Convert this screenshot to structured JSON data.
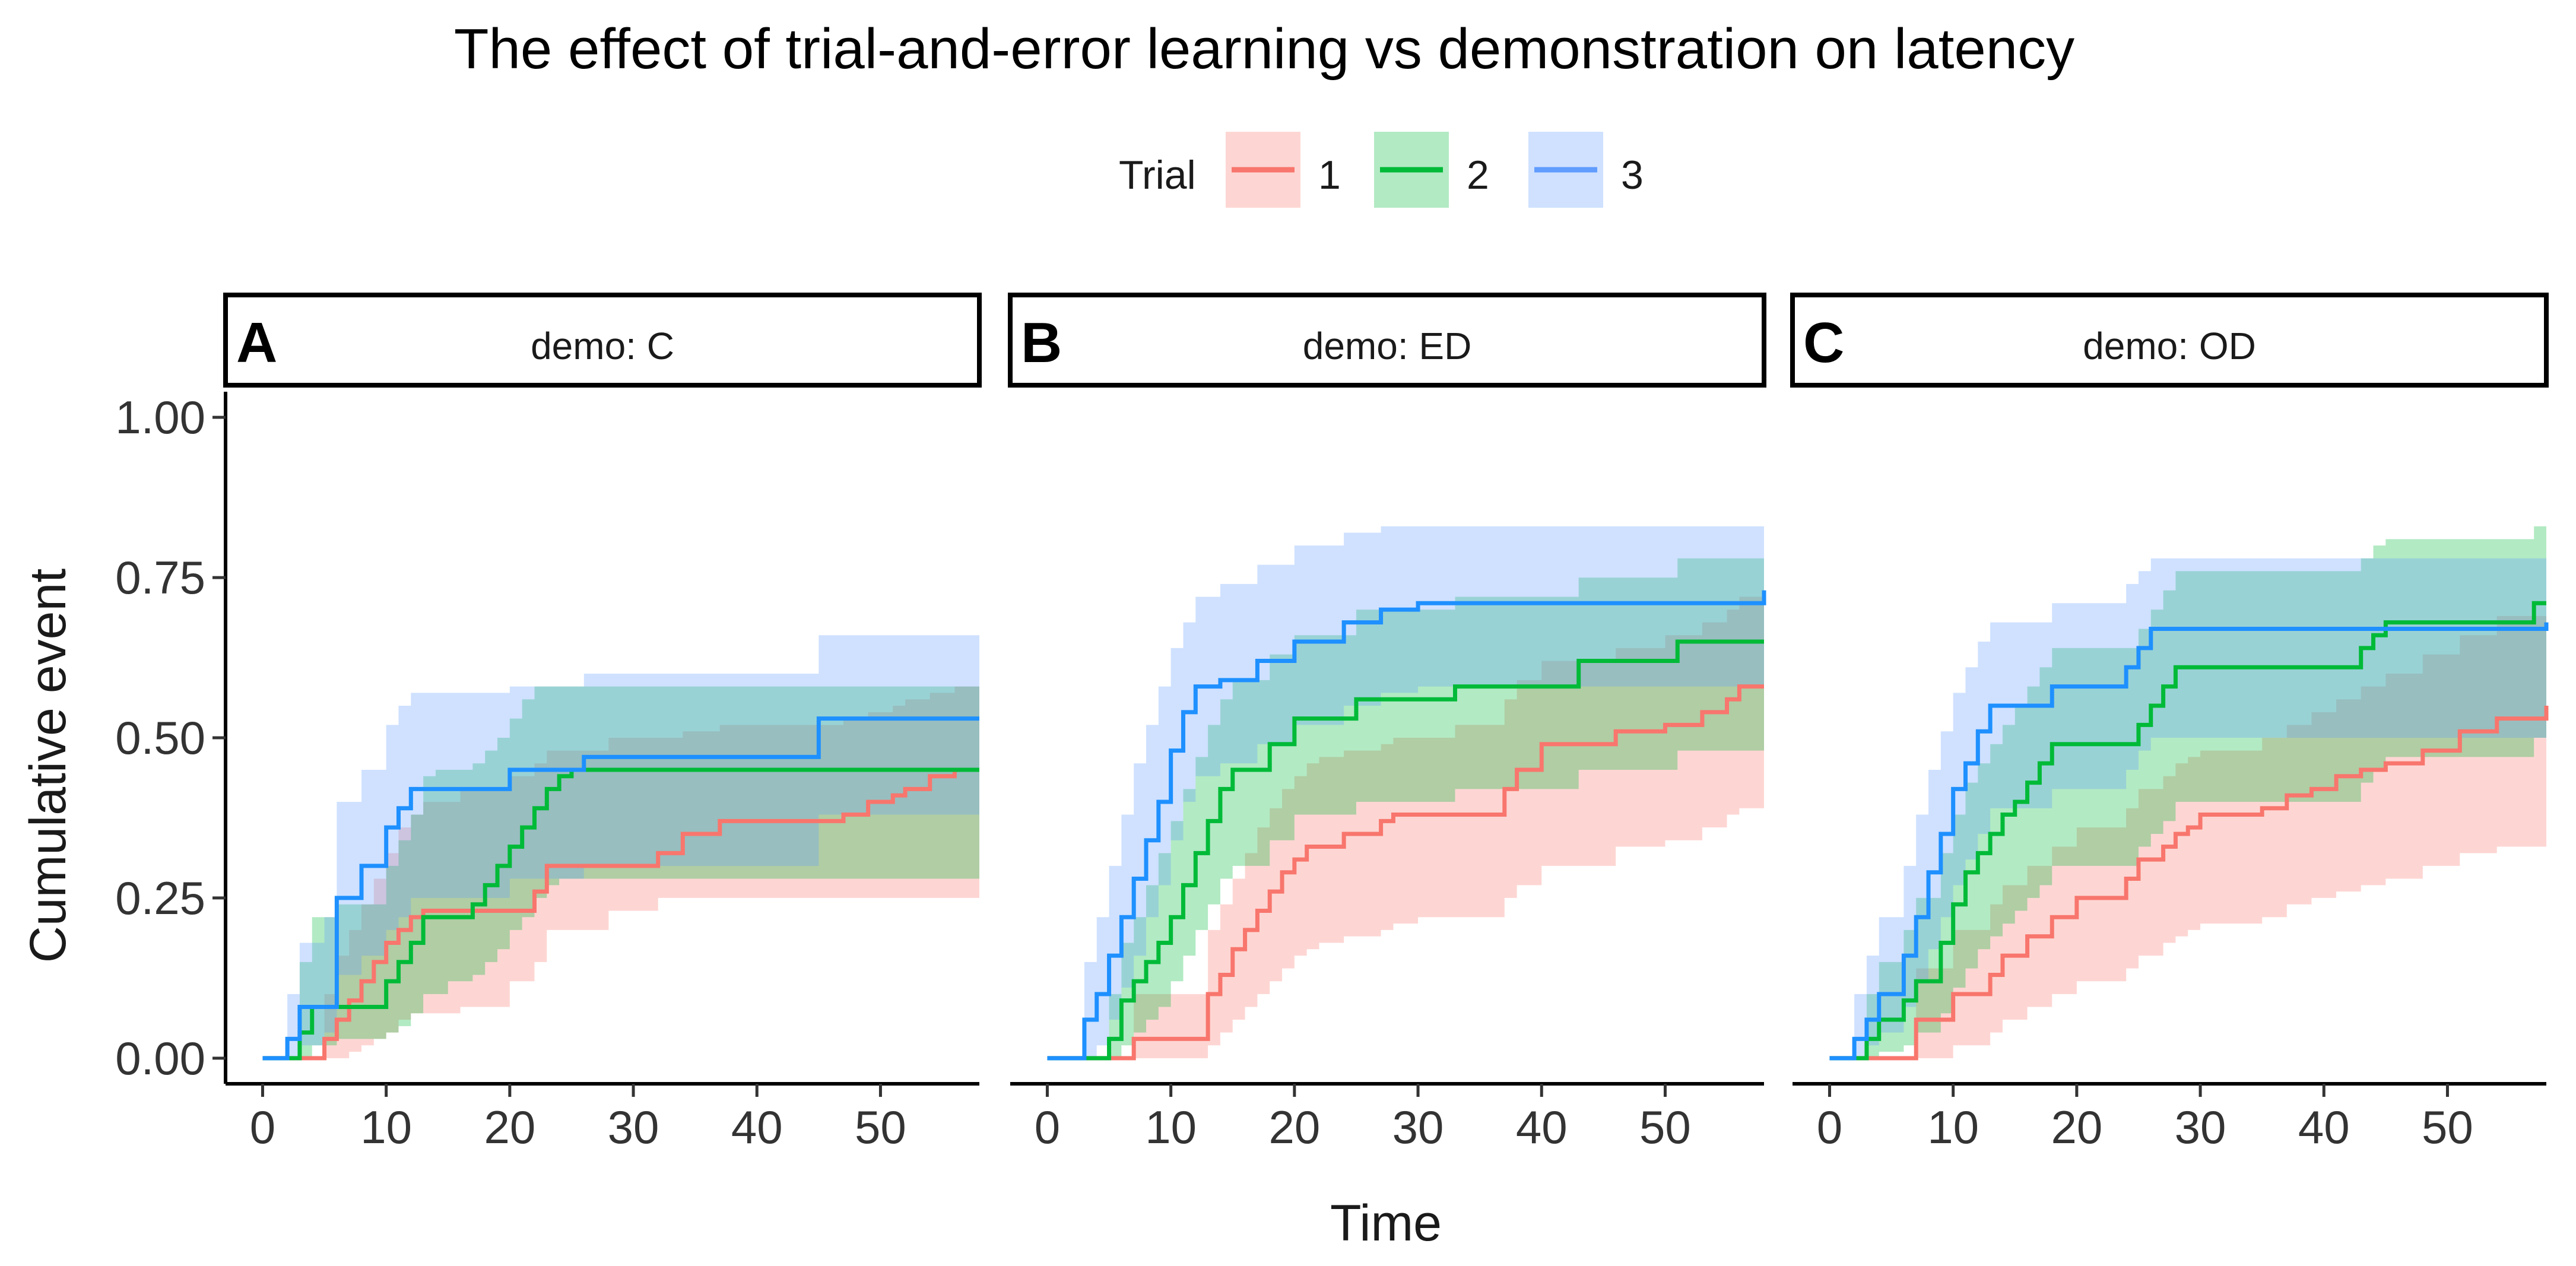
{
  "chart_data": {
    "type": "line",
    "step": true,
    "title": "The effect of trial-and-error learning vs demonstration on latency",
    "xlabel": "Time",
    "ylabel": "Cumulative event",
    "xlim": [
      -3,
      58
    ],
    "ylim": [
      -0.04,
      1.04
    ],
    "xticks": [
      0,
      10,
      20,
      30,
      40,
      50
    ],
    "xtick_labels": [
      "0",
      "10",
      "20",
      "30",
      "40",
      "50"
    ],
    "yticks": [
      0,
      0.25,
      0.5,
      0.75,
      1.0
    ],
    "ytick_labels": [
      "0.00",
      "0.25",
      "0.50",
      "0.75",
      "1.00"
    ],
    "legend": {
      "title": "Trial",
      "position": "top",
      "entries": [
        {
          "label": "1",
          "line_color": "#F8766D",
          "fill_color": "#F8766D"
        },
        {
          "label": "2",
          "line_color": "#00BA38",
          "fill_color": "#00BA38"
        },
        {
          "label": "3",
          "line_color": "#619CFF",
          "fill_color": "#619CFF"
        }
      ]
    },
    "line_colors": [
      "#F8766D",
      "#00BA38",
      "#1E90FF"
    ],
    "band_opacity": 0.3,
    "panels": [
      {
        "letter": "A",
        "strip": "demo: C",
        "series": [
          {
            "name": "1",
            "x": [
              0,
              5,
              6,
              7,
              8,
              9,
              10,
              11,
              12,
              13,
              16,
              20,
              22,
              23,
              28,
              32,
              34,
              37,
              42,
              47,
              49,
              51,
              52,
              54,
              56,
              58
            ],
            "y": [
              0,
              0.03,
              0.06,
              0.09,
              0.12,
              0.15,
              0.18,
              0.2,
              0.22,
              0.23,
              0.23,
              0.23,
              0.26,
              0.3,
              0.3,
              0.32,
              0.35,
              0.37,
              0.37,
              0.38,
              0.4,
              0.41,
              0.42,
              0.44,
              0.45,
              0.45
            ],
            "lower": [
              0,
              0.0,
              0.0,
              0.01,
              0.02,
              0.03,
              0.04,
              0.06,
              0.07,
              0.07,
              0.08,
              0.12,
              0.15,
              0.2,
              0.23,
              0.25,
              0.25,
              0.25,
              0.25,
              0.25,
              0.25,
              0.25,
              0.25,
              0.25,
              0.25,
              0.25
            ],
            "upper": [
              0,
              0.1,
              0.16,
              0.2,
              0.24,
              0.28,
              0.32,
              0.36,
              0.38,
              0.4,
              0.42,
              0.44,
              0.46,
              0.48,
              0.5,
              0.5,
              0.51,
              0.52,
              0.52,
              0.53,
              0.54,
              0.55,
              0.56,
              0.57,
              0.58,
              0.58
            ]
          },
          {
            "name": "2",
            "x": [
              0,
              3,
              4,
              6,
              10,
              11,
              12,
              13,
              14,
              15,
              17,
              18,
              19,
              20,
              21,
              22,
              23,
              24,
              25,
              58
            ],
            "y": [
              0,
              0.04,
              0.08,
              0.08,
              0.12,
              0.15,
              0.18,
              0.22,
              0.22,
              0.22,
              0.24,
              0.27,
              0.3,
              0.33,
              0.36,
              0.39,
              0.42,
              0.44,
              0.45,
              0.45
            ],
            "lower": [
              0,
              0.0,
              0.02,
              0.03,
              0.04,
              0.05,
              0.07,
              0.1,
              0.1,
              0.12,
              0.13,
              0.15,
              0.17,
              0.2,
              0.22,
              0.25,
              0.27,
              0.28,
              0.28,
              0.28
            ],
            "upper": [
              0,
              0.15,
              0.22,
              0.24,
              0.3,
              0.34,
              0.38,
              0.44,
              0.45,
              0.45,
              0.46,
              0.48,
              0.5,
              0.53,
              0.56,
              0.58,
              0.58,
              0.58,
              0.58,
              0.58
            ]
          },
          {
            "name": "3",
            "x": [
              0,
              2,
              3,
              5,
              6,
              8,
              10,
              11,
              12,
              20,
              26,
              45,
              58
            ],
            "y": [
              0,
              0.03,
              0.08,
              0.08,
              0.25,
              0.3,
              0.36,
              0.39,
              0.42,
              0.45,
              0.47,
              0.53,
              0.53
            ],
            "lower": [
              0,
              0.0,
              0.02,
              0.04,
              0.13,
              0.16,
              0.2,
              0.22,
              0.25,
              0.28,
              0.3,
              0.38,
              0.38
            ],
            "upper": [
              0,
              0.1,
              0.18,
              0.22,
              0.4,
              0.45,
              0.52,
              0.55,
              0.57,
              0.58,
              0.6,
              0.66,
              0.66
            ]
          }
        ]
      },
      {
        "letter": "B",
        "strip": "demo: ED",
        "series": [
          {
            "name": "1",
            "x": [
              0,
              7,
              13,
              14,
              15,
              16,
              17,
              18,
              19,
              20,
              21,
              22,
              24,
              27,
              28,
              30,
              33,
              37,
              38,
              40,
              46,
              50,
              53,
              55,
              56,
              58
            ],
            "y": [
              0,
              0.03,
              0.1,
              0.13,
              0.17,
              0.2,
              0.23,
              0.26,
              0.29,
              0.31,
              0.33,
              0.33,
              0.35,
              0.37,
              0.38,
              0.38,
              0.38,
              0.42,
              0.45,
              0.49,
              0.51,
              0.52,
              0.54,
              0.56,
              0.58,
              0.58
            ],
            "lower": [
              0,
              0.0,
              0.02,
              0.04,
              0.06,
              0.08,
              0.1,
              0.12,
              0.14,
              0.16,
              0.17,
              0.18,
              0.19,
              0.2,
              0.21,
              0.22,
              0.22,
              0.25,
              0.27,
              0.3,
              0.33,
              0.34,
              0.36,
              0.38,
              0.39,
              0.39
            ],
            "upper": [
              0,
              0.1,
              0.2,
              0.24,
              0.28,
              0.32,
              0.36,
              0.39,
              0.42,
              0.44,
              0.46,
              0.47,
              0.48,
              0.49,
              0.5,
              0.5,
              0.52,
              0.56,
              0.59,
              0.62,
              0.64,
              0.66,
              0.68,
              0.7,
              0.72,
              0.72
            ]
          },
          {
            "name": "2",
            "x": [
              0,
              5,
              6,
              7,
              8,
              9,
              10,
              11,
              12,
              13,
              14,
              15,
              18,
              20,
              25,
              33,
              43,
              51,
              58
            ],
            "y": [
              0,
              0.03,
              0.09,
              0.12,
              0.15,
              0.18,
              0.22,
              0.27,
              0.32,
              0.37,
              0.42,
              0.45,
              0.49,
              0.53,
              0.56,
              0.58,
              0.62,
              0.65,
              0.65
            ],
            "lower": [
              0,
              0.0,
              0.02,
              0.04,
              0.06,
              0.08,
              0.12,
              0.16,
              0.2,
              0.24,
              0.28,
              0.3,
              0.34,
              0.38,
              0.4,
              0.42,
              0.45,
              0.48,
              0.48
            ],
            "upper": [
              0,
              0.1,
              0.18,
              0.22,
              0.27,
              0.32,
              0.37,
              0.42,
              0.47,
              0.52,
              0.56,
              0.59,
              0.63,
              0.66,
              0.7,
              0.72,
              0.75,
              0.78,
              0.78
            ]
          },
          {
            "name": "3",
            "x": [
              0,
              3,
              4,
              5,
              6,
              7,
              8,
              9,
              10,
              11,
              12,
              14,
              17,
              20,
              24,
              27,
              30,
              58
            ],
            "y": [
              0,
              0.06,
              0.1,
              0.16,
              0.22,
              0.28,
              0.34,
              0.4,
              0.48,
              0.54,
              0.58,
              0.59,
              0.62,
              0.65,
              0.68,
              0.7,
              0.71,
              0.73
            ],
            "lower": [
              0,
              0.0,
              0.02,
              0.06,
              0.11,
              0.16,
              0.22,
              0.27,
              0.34,
              0.4,
              0.44,
              0.46,
              0.49,
              0.52,
              0.55,
              0.57,
              0.58,
              0.6
            ],
            "upper": [
              0,
              0.15,
              0.22,
              0.3,
              0.38,
              0.46,
              0.52,
              0.58,
              0.64,
              0.68,
              0.72,
              0.74,
              0.77,
              0.8,
              0.82,
              0.83,
              0.83,
              0.83
            ]
          }
        ]
      },
      {
        "letter": "C",
        "strip": "demo: OD",
        "series": [
          {
            "name": "1",
            "x": [
              0,
              7,
              10,
              13,
              14,
              16,
              18,
              20,
              24,
              25,
              27,
              28,
              29,
              30,
              35,
              37,
              39,
              41,
              43,
              45,
              48,
              51,
              54,
              58
            ],
            "y": [
              0,
              0.06,
              0.1,
              0.13,
              0.16,
              0.19,
              0.22,
              0.25,
              0.28,
              0.31,
              0.33,
              0.35,
              0.36,
              0.38,
              0.39,
              0.41,
              0.42,
              0.44,
              0.45,
              0.46,
              0.48,
              0.51,
              0.53,
              0.55
            ],
            "lower": [
              0,
              0.0,
              0.02,
              0.04,
              0.06,
              0.08,
              0.1,
              0.12,
              0.14,
              0.16,
              0.18,
              0.19,
              0.2,
              0.21,
              0.22,
              0.24,
              0.25,
              0.26,
              0.27,
              0.28,
              0.3,
              0.32,
              0.33,
              0.34
            ],
            "upper": [
              0,
              0.14,
              0.2,
              0.24,
              0.27,
              0.3,
              0.33,
              0.36,
              0.39,
              0.42,
              0.44,
              0.46,
              0.47,
              0.48,
              0.5,
              0.52,
              0.54,
              0.56,
              0.58,
              0.6,
              0.63,
              0.66,
              0.69,
              0.7
            ]
          },
          {
            "name": "2",
            "x": [
              0,
              3,
              4,
              6,
              7,
              9,
              10,
              11,
              12,
              13,
              14,
              15,
              16,
              17,
              18,
              25,
              26,
              27,
              28,
              43,
              44,
              45,
              57,
              58
            ],
            "y": [
              0,
              0.03,
              0.06,
              0.09,
              0.12,
              0.18,
              0.24,
              0.29,
              0.32,
              0.35,
              0.38,
              0.4,
              0.43,
              0.46,
              0.49,
              0.52,
              0.55,
              0.58,
              0.61,
              0.64,
              0.66,
              0.68,
              0.71,
              0.71
            ],
            "lower": [
              0,
              0.0,
              0.01,
              0.02,
              0.04,
              0.07,
              0.11,
              0.14,
              0.17,
              0.19,
              0.21,
              0.23,
              0.25,
              0.27,
              0.3,
              0.33,
              0.35,
              0.37,
              0.4,
              0.43,
              0.45,
              0.47,
              0.5,
              0.5
            ],
            "upper": [
              0,
              0.1,
              0.15,
              0.2,
              0.25,
              0.32,
              0.38,
              0.43,
              0.46,
              0.49,
              0.52,
              0.55,
              0.58,
              0.61,
              0.64,
              0.67,
              0.7,
              0.73,
              0.76,
              0.78,
              0.8,
              0.81,
              0.83,
              0.83
            ]
          },
          {
            "name": "3",
            "x": [
              0,
              2,
              3,
              4,
              6,
              7,
              8,
              9,
              10,
              11,
              12,
              13,
              18,
              24,
              25,
              26,
              58
            ],
            "y": [
              0,
              0.03,
              0.06,
              0.1,
              0.16,
              0.22,
              0.29,
              0.35,
              0.42,
              0.46,
              0.51,
              0.55,
              0.58,
              0.61,
              0.64,
              0.67,
              0.68
            ],
            "lower": [
              0,
              0.0,
              0.02,
              0.04,
              0.08,
              0.12,
              0.17,
              0.22,
              0.27,
              0.31,
              0.35,
              0.39,
              0.42,
              0.45,
              0.48,
              0.5,
              0.5
            ],
            "upper": [
              0,
              0.1,
              0.16,
              0.22,
              0.3,
              0.38,
              0.45,
              0.51,
              0.57,
              0.61,
              0.65,
              0.68,
              0.71,
              0.74,
              0.76,
              0.78,
              0.8
            ]
          }
        ]
      }
    ]
  }
}
